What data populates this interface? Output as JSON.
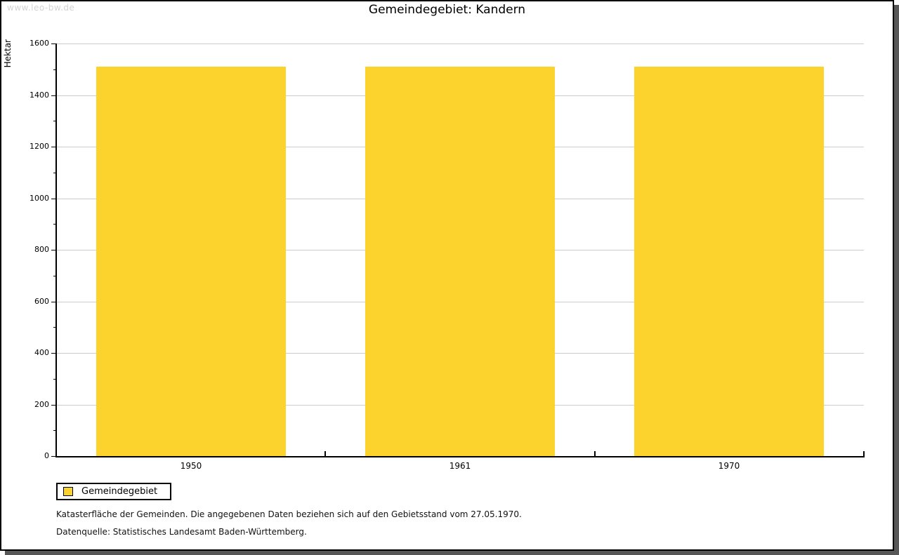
{
  "page": {
    "watermark": "www.leo-bw.de",
    "background_color": "#FFFFFF",
    "frame_border_color": "#000000",
    "frame_shadow_color": "#575757"
  },
  "chart_data": {
    "type": "bar",
    "title": "Gemeindegebiet: Kandern",
    "categories": [
      "1950",
      "1961",
      "1970"
    ],
    "series": [
      {
        "name": "Gemeindegebiet",
        "values": [
          1510,
          1510,
          1510
        ]
      }
    ],
    "xlabel": "",
    "ylabel": "Hektar",
    "ylim": [
      0,
      1600
    ],
    "ytick_step": 200,
    "yminor_step": 100,
    "yticks": [
      0,
      200,
      400,
      600,
      800,
      1000,
      1200,
      1400,
      1600
    ],
    "grid": "horizontal-major",
    "legend_position": "bottom-left",
    "bar_color": "#FCD32D",
    "grid_color": "#CCCCCC",
    "axis_color": "#000000"
  },
  "legend": {
    "items": [
      {
        "label": "Gemeindegebiet",
        "color": "#FCD32D"
      }
    ]
  },
  "footer": {
    "line1": "Katasterfläche der Gemeinden. Die angegebenen Daten beziehen sich auf den Gebietsstand vom 27.05.1970.",
    "line2": "Datenquelle: Statistisches Landesamt Baden-Württemberg."
  }
}
